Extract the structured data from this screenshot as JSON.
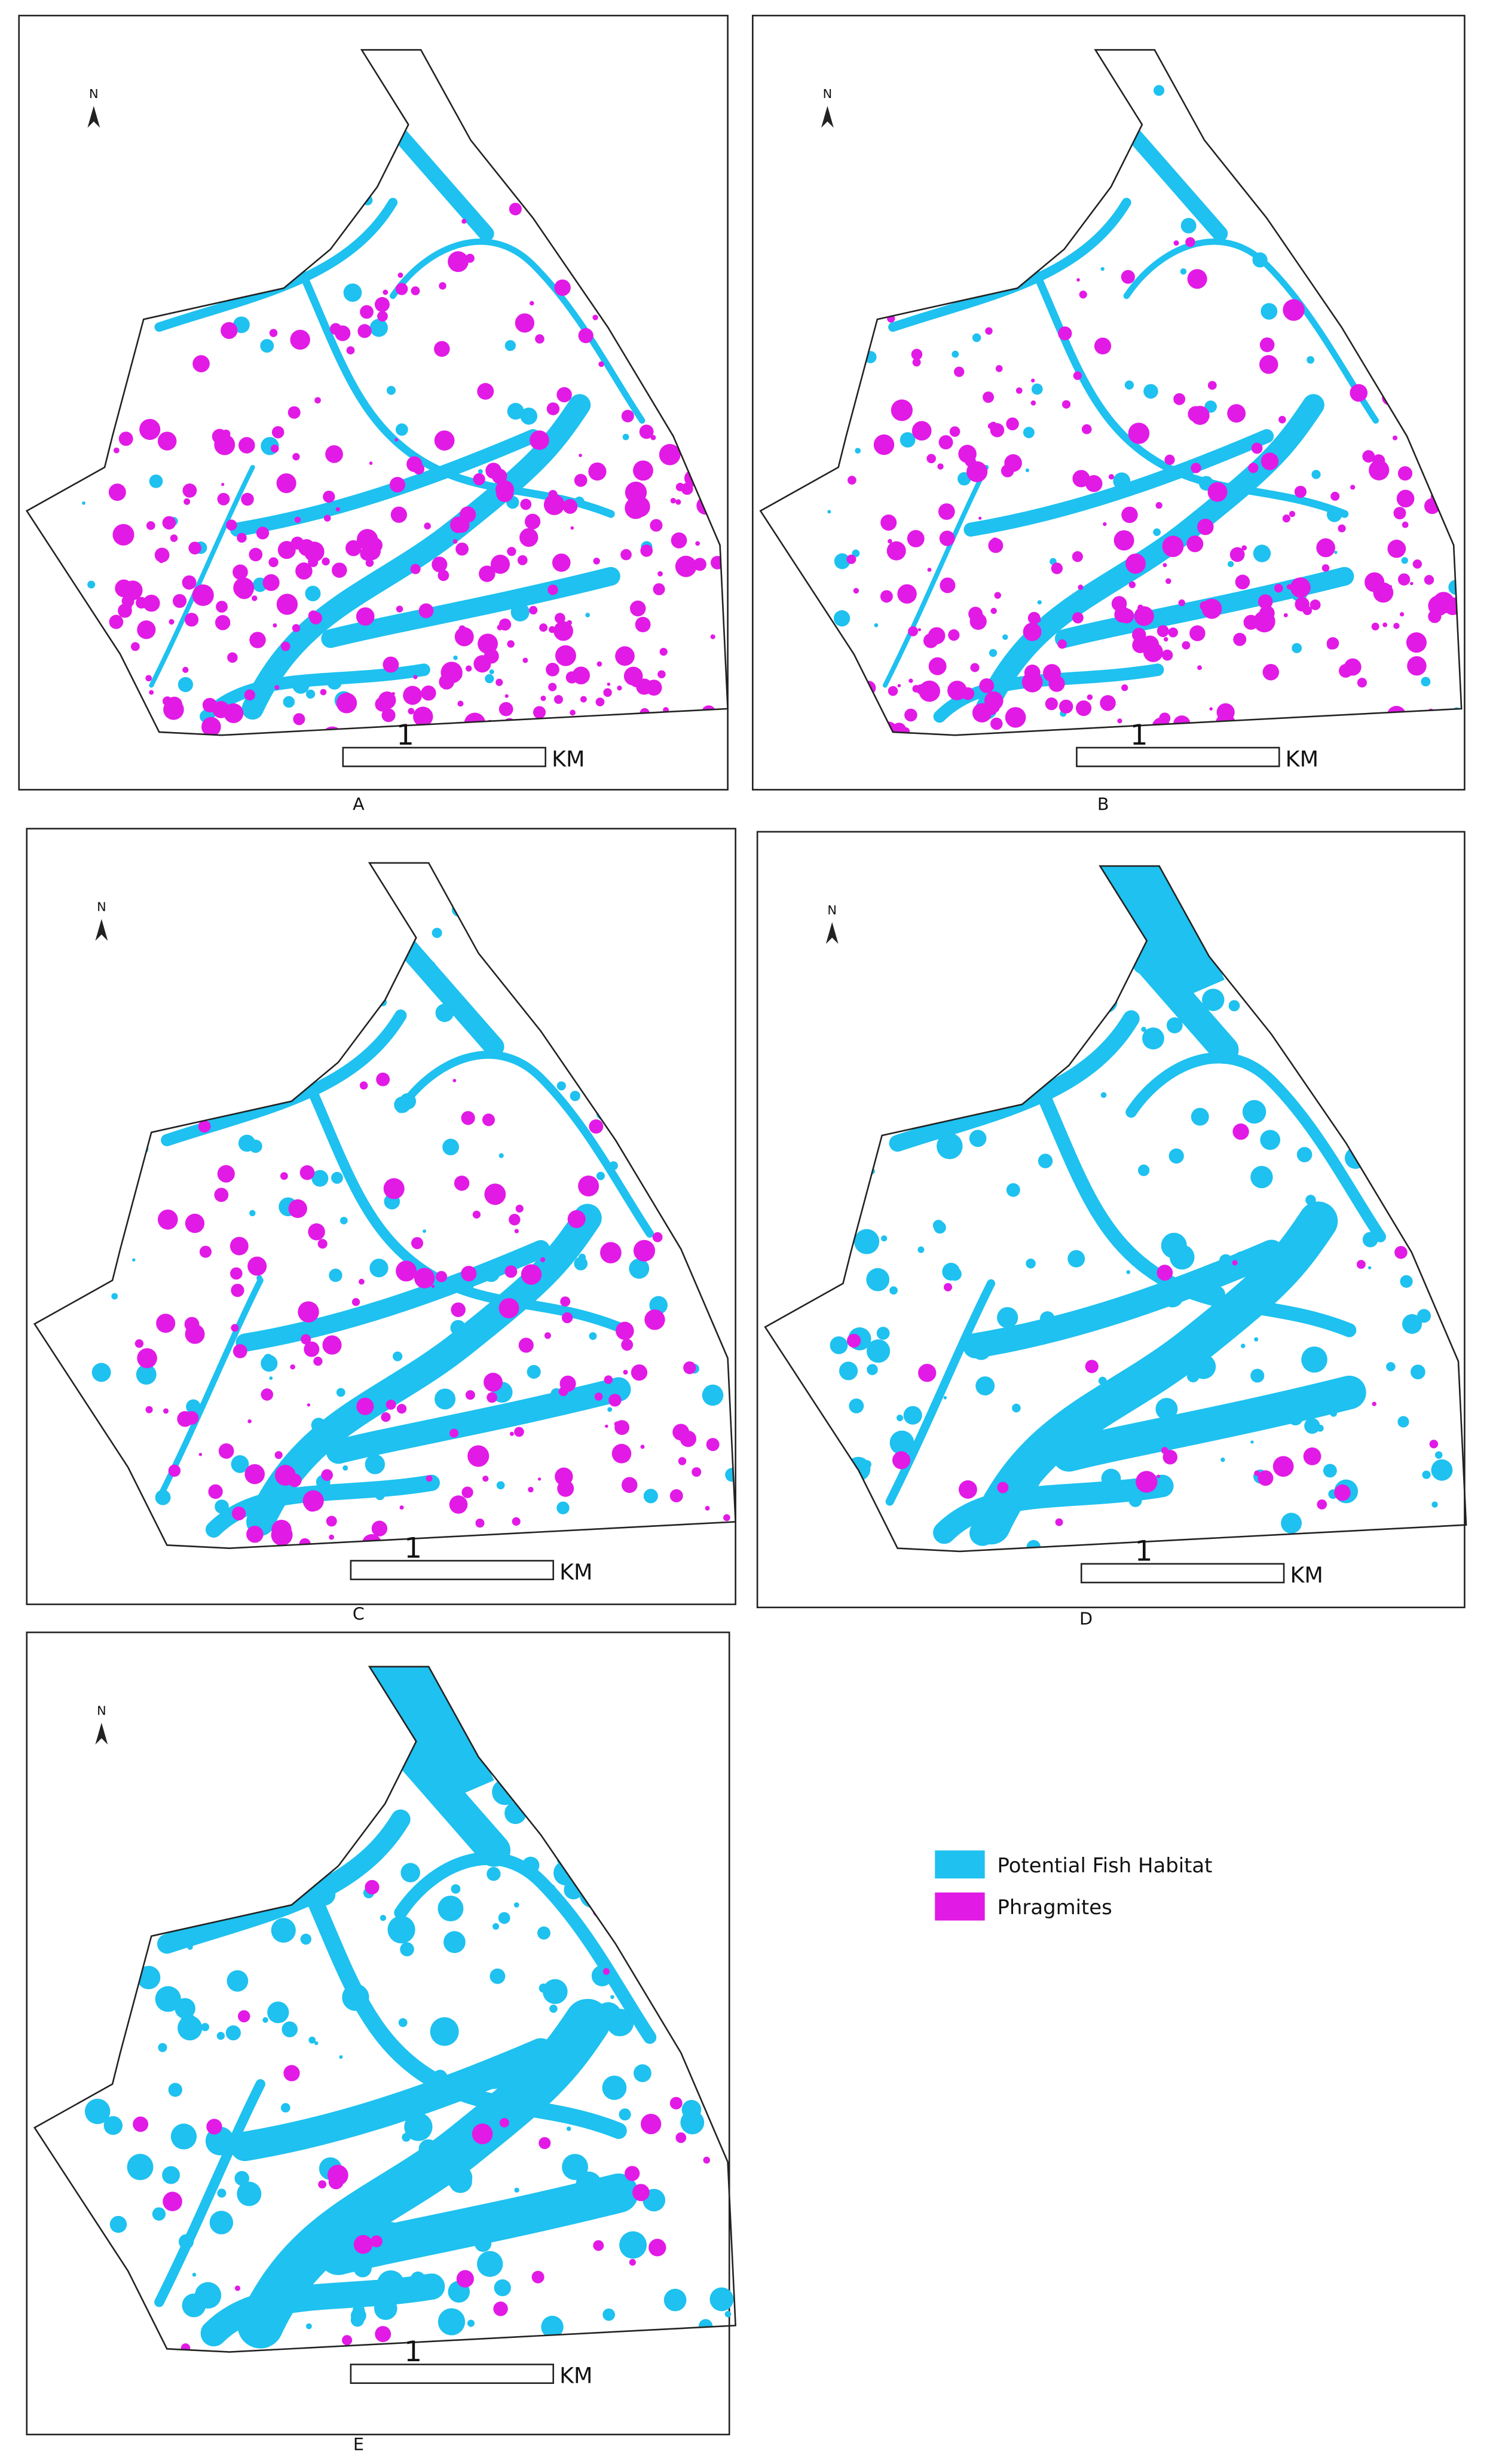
{
  "panels": [
    {
      "label": "A",
      "north": "N",
      "scale_value": "1",
      "scale_unit": "KM"
    },
    {
      "label": "B",
      "north": "N",
      "scale_value": "1",
      "scale_unit": "KM"
    },
    {
      "label": "C",
      "north": "N",
      "scale_value": "1",
      "scale_unit": "KM"
    },
    {
      "label": "D",
      "north": "N",
      "scale_value": "1",
      "scale_unit": "KM"
    },
    {
      "label": "E",
      "north": "N",
      "scale_value": "1",
      "scale_unit": "KM"
    }
  ],
  "legend": [
    {
      "label": "Potential Fish Habitat",
      "color": "#1ec1ef"
    },
    {
      "label": "Phragmites",
      "color": "#e21ae6"
    }
  ]
}
